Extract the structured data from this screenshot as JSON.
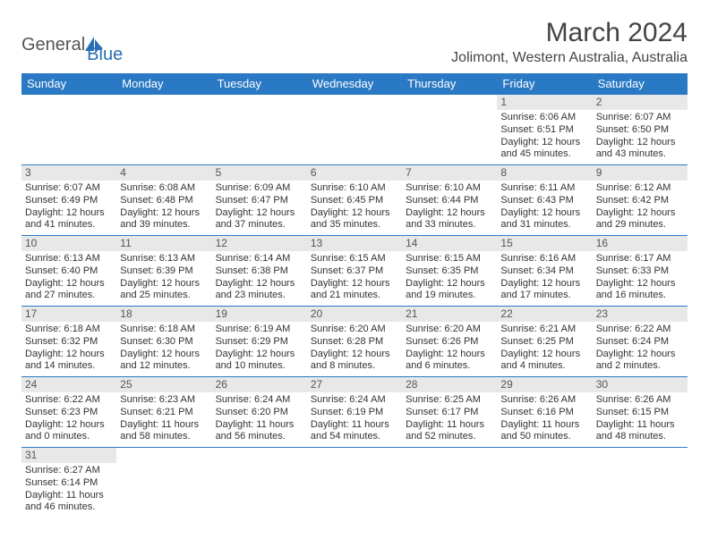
{
  "logo": {
    "text1": "General",
    "text2": "Blue"
  },
  "title": "March 2024",
  "subtitle": "Jolimont, Western Australia, Australia",
  "colors": {
    "header_bg": "#2a79c4",
    "header_fg": "#ffffff",
    "daynum_bg": "#e8e8e8",
    "border": "#2a79c4",
    "text": "#333333",
    "title_color": "#444444",
    "logo_gray": "#555555",
    "logo_blue": "#2a6fb5"
  },
  "weekdays": [
    "Sunday",
    "Monday",
    "Tuesday",
    "Wednesday",
    "Thursday",
    "Friday",
    "Saturday"
  ],
  "weeks": [
    [
      null,
      null,
      null,
      null,
      null,
      {
        "n": "1",
        "sunrise": "Sunrise: 6:06 AM",
        "sunset": "Sunset: 6:51 PM",
        "day1": "Daylight: 12 hours",
        "day2": "and 45 minutes."
      },
      {
        "n": "2",
        "sunrise": "Sunrise: 6:07 AM",
        "sunset": "Sunset: 6:50 PM",
        "day1": "Daylight: 12 hours",
        "day2": "and 43 minutes."
      }
    ],
    [
      {
        "n": "3",
        "sunrise": "Sunrise: 6:07 AM",
        "sunset": "Sunset: 6:49 PM",
        "day1": "Daylight: 12 hours",
        "day2": "and 41 minutes."
      },
      {
        "n": "4",
        "sunrise": "Sunrise: 6:08 AM",
        "sunset": "Sunset: 6:48 PM",
        "day1": "Daylight: 12 hours",
        "day2": "and 39 minutes."
      },
      {
        "n": "5",
        "sunrise": "Sunrise: 6:09 AM",
        "sunset": "Sunset: 6:47 PM",
        "day1": "Daylight: 12 hours",
        "day2": "and 37 minutes."
      },
      {
        "n": "6",
        "sunrise": "Sunrise: 6:10 AM",
        "sunset": "Sunset: 6:45 PM",
        "day1": "Daylight: 12 hours",
        "day2": "and 35 minutes."
      },
      {
        "n": "7",
        "sunrise": "Sunrise: 6:10 AM",
        "sunset": "Sunset: 6:44 PM",
        "day1": "Daylight: 12 hours",
        "day2": "and 33 minutes."
      },
      {
        "n": "8",
        "sunrise": "Sunrise: 6:11 AM",
        "sunset": "Sunset: 6:43 PM",
        "day1": "Daylight: 12 hours",
        "day2": "and 31 minutes."
      },
      {
        "n": "9",
        "sunrise": "Sunrise: 6:12 AM",
        "sunset": "Sunset: 6:42 PM",
        "day1": "Daylight: 12 hours",
        "day2": "and 29 minutes."
      }
    ],
    [
      {
        "n": "10",
        "sunrise": "Sunrise: 6:13 AM",
        "sunset": "Sunset: 6:40 PM",
        "day1": "Daylight: 12 hours",
        "day2": "and 27 minutes."
      },
      {
        "n": "11",
        "sunrise": "Sunrise: 6:13 AM",
        "sunset": "Sunset: 6:39 PM",
        "day1": "Daylight: 12 hours",
        "day2": "and 25 minutes."
      },
      {
        "n": "12",
        "sunrise": "Sunrise: 6:14 AM",
        "sunset": "Sunset: 6:38 PM",
        "day1": "Daylight: 12 hours",
        "day2": "and 23 minutes."
      },
      {
        "n": "13",
        "sunrise": "Sunrise: 6:15 AM",
        "sunset": "Sunset: 6:37 PM",
        "day1": "Daylight: 12 hours",
        "day2": "and 21 minutes."
      },
      {
        "n": "14",
        "sunrise": "Sunrise: 6:15 AM",
        "sunset": "Sunset: 6:35 PM",
        "day1": "Daylight: 12 hours",
        "day2": "and 19 minutes."
      },
      {
        "n": "15",
        "sunrise": "Sunrise: 6:16 AM",
        "sunset": "Sunset: 6:34 PM",
        "day1": "Daylight: 12 hours",
        "day2": "and 17 minutes."
      },
      {
        "n": "16",
        "sunrise": "Sunrise: 6:17 AM",
        "sunset": "Sunset: 6:33 PM",
        "day1": "Daylight: 12 hours",
        "day2": "and 16 minutes."
      }
    ],
    [
      {
        "n": "17",
        "sunrise": "Sunrise: 6:18 AM",
        "sunset": "Sunset: 6:32 PM",
        "day1": "Daylight: 12 hours",
        "day2": "and 14 minutes."
      },
      {
        "n": "18",
        "sunrise": "Sunrise: 6:18 AM",
        "sunset": "Sunset: 6:30 PM",
        "day1": "Daylight: 12 hours",
        "day2": "and 12 minutes."
      },
      {
        "n": "19",
        "sunrise": "Sunrise: 6:19 AM",
        "sunset": "Sunset: 6:29 PM",
        "day1": "Daylight: 12 hours",
        "day2": "and 10 minutes."
      },
      {
        "n": "20",
        "sunrise": "Sunrise: 6:20 AM",
        "sunset": "Sunset: 6:28 PM",
        "day1": "Daylight: 12 hours",
        "day2": "and 8 minutes."
      },
      {
        "n": "21",
        "sunrise": "Sunrise: 6:20 AM",
        "sunset": "Sunset: 6:26 PM",
        "day1": "Daylight: 12 hours",
        "day2": "and 6 minutes."
      },
      {
        "n": "22",
        "sunrise": "Sunrise: 6:21 AM",
        "sunset": "Sunset: 6:25 PM",
        "day1": "Daylight: 12 hours",
        "day2": "and 4 minutes."
      },
      {
        "n": "23",
        "sunrise": "Sunrise: 6:22 AM",
        "sunset": "Sunset: 6:24 PM",
        "day1": "Daylight: 12 hours",
        "day2": "and 2 minutes."
      }
    ],
    [
      {
        "n": "24",
        "sunrise": "Sunrise: 6:22 AM",
        "sunset": "Sunset: 6:23 PM",
        "day1": "Daylight: 12 hours",
        "day2": "and 0 minutes."
      },
      {
        "n": "25",
        "sunrise": "Sunrise: 6:23 AM",
        "sunset": "Sunset: 6:21 PM",
        "day1": "Daylight: 11 hours",
        "day2": "and 58 minutes."
      },
      {
        "n": "26",
        "sunrise": "Sunrise: 6:24 AM",
        "sunset": "Sunset: 6:20 PM",
        "day1": "Daylight: 11 hours",
        "day2": "and 56 minutes."
      },
      {
        "n": "27",
        "sunrise": "Sunrise: 6:24 AM",
        "sunset": "Sunset: 6:19 PM",
        "day1": "Daylight: 11 hours",
        "day2": "and 54 minutes."
      },
      {
        "n": "28",
        "sunrise": "Sunrise: 6:25 AM",
        "sunset": "Sunset: 6:17 PM",
        "day1": "Daylight: 11 hours",
        "day2": "and 52 minutes."
      },
      {
        "n": "29",
        "sunrise": "Sunrise: 6:26 AM",
        "sunset": "Sunset: 6:16 PM",
        "day1": "Daylight: 11 hours",
        "day2": "and 50 minutes."
      },
      {
        "n": "30",
        "sunrise": "Sunrise: 6:26 AM",
        "sunset": "Sunset: 6:15 PM",
        "day1": "Daylight: 11 hours",
        "day2": "and 48 minutes."
      }
    ],
    [
      {
        "n": "31",
        "sunrise": "Sunrise: 6:27 AM",
        "sunset": "Sunset: 6:14 PM",
        "day1": "Daylight: 11 hours",
        "day2": "and 46 minutes."
      },
      null,
      null,
      null,
      null,
      null,
      null
    ]
  ]
}
